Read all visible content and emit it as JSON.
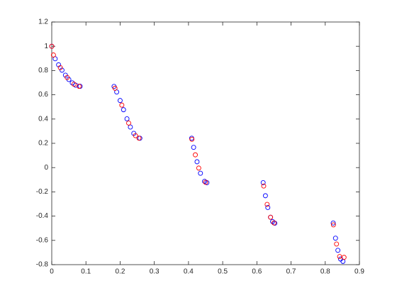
{
  "chart_data": {
    "type": "scatter",
    "xlim": [
      0,
      0.9
    ],
    "ylim": [
      -0.8,
      1.2
    ],
    "xticks": [
      0,
      0.1,
      0.2,
      0.3,
      0.4,
      0.5,
      0.6,
      0.7,
      0.8,
      0.9
    ],
    "yticks": [
      -0.8,
      -0.6,
      -0.4,
      -0.2,
      0,
      0.2,
      0.4,
      0.6,
      0.8,
      1,
      1.2
    ],
    "grid": false,
    "series": [
      {
        "color": "#0000ff",
        "x": [
          0,
          0.01,
          0.02,
          0.03,
          0.04,
          0.05,
          0.06,
          0.07,
          0.083,
          0.1822,
          0.19,
          0.2,
          0.21,
          0.22,
          0.23,
          0.24,
          0.2578,
          0.4093,
          0.415,
          0.425,
          0.435,
          0.447,
          0.4539,
          0.6184,
          0.625,
          0.632,
          0.64,
          0.646,
          0.6525,
          0.8233,
          0.83,
          0.837,
          0.845,
          0.8518
        ],
        "values": [
          1,
          0.897,
          0.847,
          0.803,
          0.762,
          0.726,
          0.698,
          0.679,
          0.67,
          0.669,
          0.623,
          0.553,
          0.477,
          0.402,
          0.334,
          0.282,
          0.242,
          0.242,
          0.167,
          0.048,
          -0.047,
          -0.113,
          -0.124,
          -0.124,
          -0.232,
          -0.329,
          -0.409,
          -0.445,
          -0.458,
          -0.457,
          -0.582,
          -0.682,
          -0.754,
          -0.773
        ]
      },
      {
        "color": "#ff0000",
        "x": [
          0,
          0.005,
          0.025,
          0.045,
          0.065,
          0.08,
          0.185,
          0.205,
          0.225,
          0.245,
          0.255,
          0.41,
          0.42,
          0.43,
          0.45,
          0.62,
          0.63,
          0.64,
          0.65,
          0.824,
          0.833,
          0.842,
          0.855
        ],
        "values": [
          1,
          0.928,
          0.824,
          0.743,
          0.687,
          0.67,
          0.654,
          0.515,
          0.367,
          0.263,
          0.243,
          0.233,
          0.105,
          -0.004,
          -0.121,
          -0.152,
          -0.303,
          -0.409,
          -0.456,
          -0.472,
          -0.63,
          -0.733,
          -0.74
        ]
      }
    ]
  }
}
